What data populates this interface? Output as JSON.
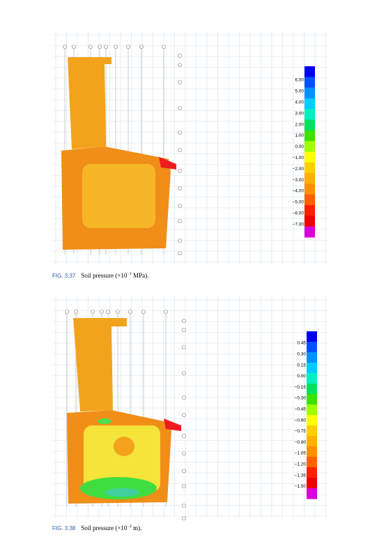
{
  "figures": [
    {
      "legend": [
        "6.00",
        "5.00",
        "4.00",
        "3.00",
        "2.00",
        "1.00",
        "0.00",
        "−1.00",
        "−2.00",
        "−3.00",
        "−4.00",
        "−5.00",
        "−6.00",
        "−7.00"
      ],
      "caption": {
        "label": "FIG. 3.37",
        "text": "Soil pressure (×10",
        "exponent": "−1",
        "unit": " MPa)."
      }
    },
    {
      "legend": [
        "0.45",
        "0.30",
        "0.15",
        "0.00",
        "−0.15",
        "−0.30",
        "−0.45",
        "−0.60",
        "−0.75",
        "−0.90",
        "−1.05",
        "−1.20",
        "−1.35",
        "−1.50"
      ],
      "caption": {
        "label": "FIG. 3.38",
        "text": "Soil pressure (×10",
        "exponent": "−2",
        "unit": " m)."
      }
    }
  ]
}
